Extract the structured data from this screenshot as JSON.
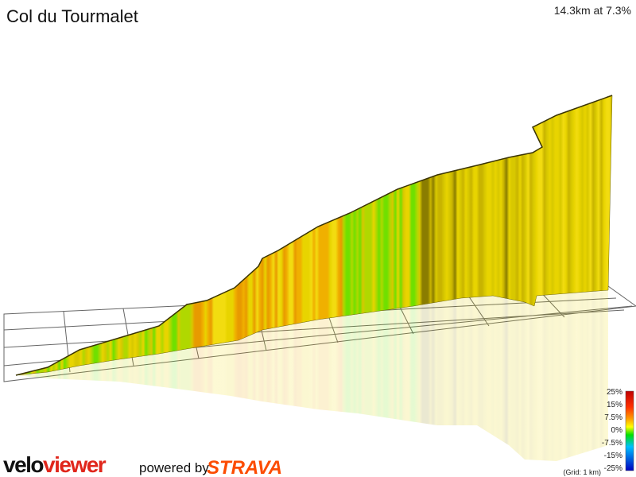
{
  "header": {
    "title": "Col du Tourmalet",
    "stats": "14.3km at 7.3%"
  },
  "legend": {
    "labels": [
      "25%",
      "15%",
      "7.5%",
      "0%",
      "-7.5%",
      "-15%",
      "-25%"
    ],
    "grid_note": "(Grid: 1 km)"
  },
  "footer": {
    "logo_left": "velo",
    "logo_right": "viewer",
    "powered": "powered by",
    "brand": "STRAVA"
  }
}
